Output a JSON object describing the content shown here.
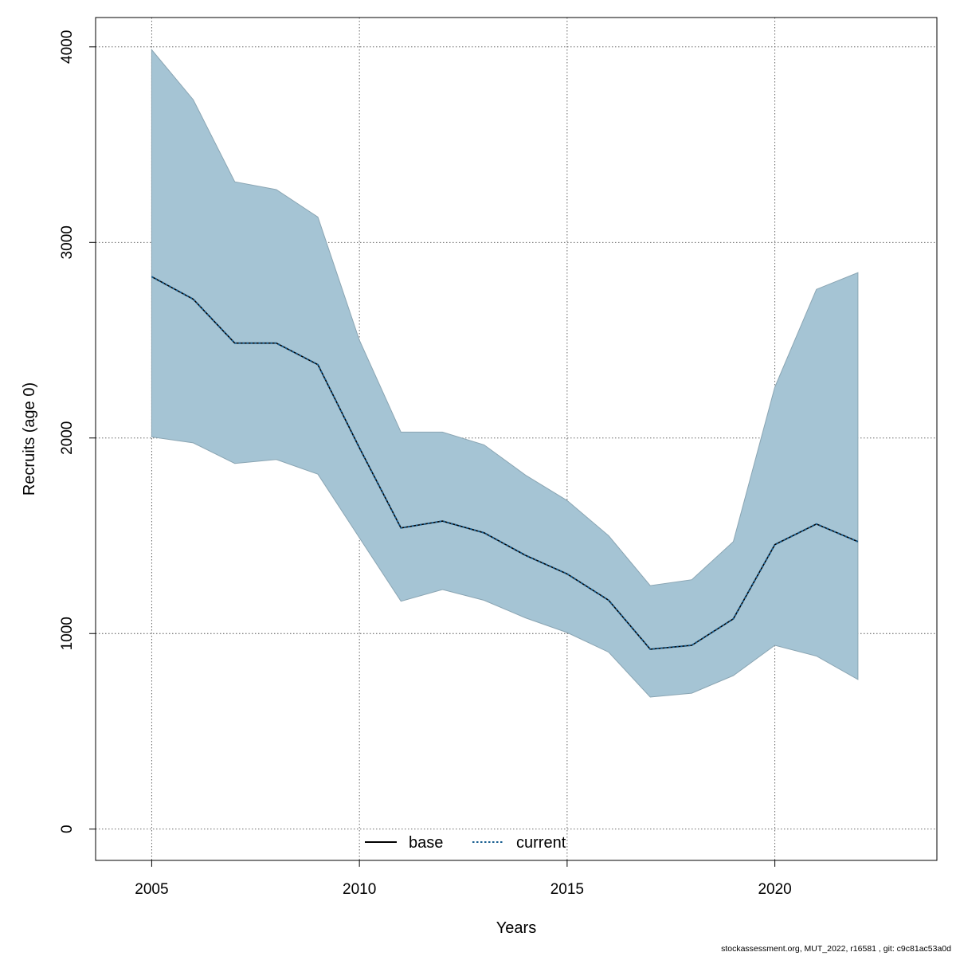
{
  "chart_data": {
    "type": "area",
    "title": "",
    "xlabel": "Years",
    "ylabel": "Recruits (age 0)",
    "xlim": [
      2003.65,
      2023.9
    ],
    "ylim": [
      -160,
      4150
    ],
    "x_ticks": [
      2005,
      2010,
      2015,
      2020
    ],
    "y_ticks": [
      0,
      1000,
      2000,
      3000,
      4000
    ],
    "x": [
      2005,
      2006,
      2007,
      2008,
      2009,
      2010,
      2011,
      2012,
      2013,
      2014,
      2015,
      2016,
      2017,
      2018,
      2019,
      2020,
      2021,
      2022
    ],
    "band": {
      "upper": [
        3985,
        3730,
        3310,
        3270,
        3130,
        2500,
        2030,
        2030,
        1965,
        1810,
        1680,
        1500,
        1245,
        1275,
        1470,
        2260,
        2760,
        2845
      ],
      "lower": [
        2005,
        1975,
        1870,
        1890,
        1815,
        1490,
        1165,
        1225,
        1170,
        1080,
        1005,
        905,
        675,
        695,
        785,
        940,
        885,
        765
      ],
      "color": "#a5c4d4"
    },
    "series": [
      {
        "name": "base",
        "line_style": "solid",
        "color": "#000000",
        "values": [
          2825,
          2710,
          2485,
          2485,
          2375,
          1950,
          1540,
          1575,
          1515,
          1400,
          1305,
          1170,
          920,
          940,
          1075,
          1455,
          1560,
          1470
        ]
      },
      {
        "name": "current",
        "line_style": "dotted",
        "color": "#1a5f91",
        "values": [
          2825,
          2710,
          2485,
          2485,
          2375,
          1950,
          1540,
          1575,
          1515,
          1400,
          1305,
          1170,
          920,
          940,
          1075,
          1455,
          1560,
          1470
        ]
      }
    ],
    "grid": true,
    "legend_position": "bottom-center"
  },
  "footer": "stockassessment.org, MUT_2022, r16581 , git: c9c81ac53a0d"
}
